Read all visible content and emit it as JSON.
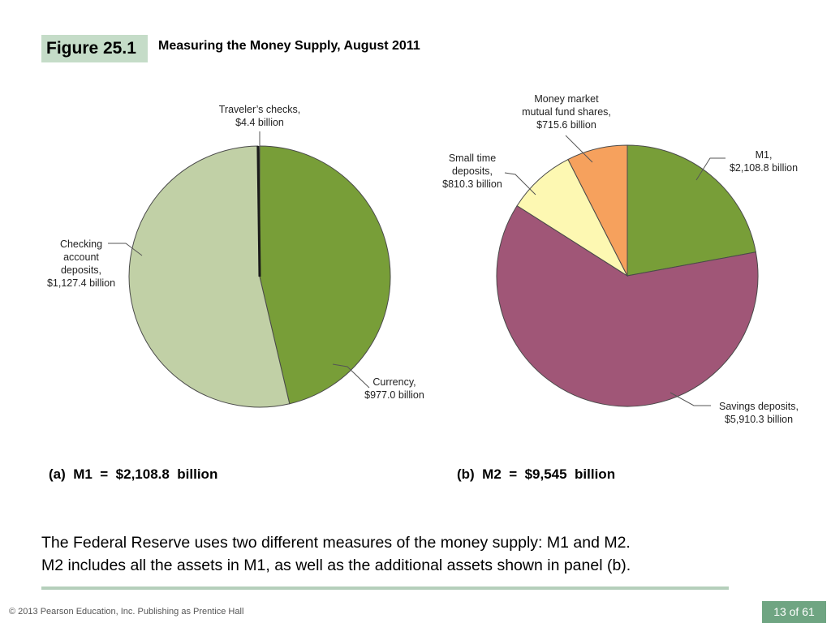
{
  "figure": {
    "label": "Figure 25.1",
    "title": "Measuring the Money Supply, August 2011"
  },
  "chart_data": [
    {
      "type": "pie",
      "subtitle": "(a)  M1  =  $2,108.8  billion",
      "slices": [
        {
          "name": "Currency",
          "value": 977.0,
          "label_lines": [
            "Currency,",
            "$977.0 billion"
          ],
          "color": "#789e38"
        },
        {
          "name": "Checking account deposits",
          "value": 1127.4,
          "label_lines": [
            "Checking",
            "account",
            "deposits,",
            "$1,127.4 billion"
          ],
          "color": "#c1d0a6"
        },
        {
          "name": "Traveler's checks",
          "value": 4.4,
          "label_lines": [
            "Traveler’s checks,",
            "$4.4 billion"
          ],
          "color": "#1a1a1a"
        }
      ]
    },
    {
      "type": "pie",
      "subtitle": "(b)  M2  =  $9,545  billion",
      "slices": [
        {
          "name": "M1",
          "value": 2108.8,
          "label_lines": [
            "M1,",
            "$2,108.8 billion"
          ],
          "color": "#789e38"
        },
        {
          "name": "Savings deposits",
          "value": 5910.3,
          "label_lines": [
            "Savings deposits,",
            "$5,910.3 billion"
          ],
          "color": "#a05677"
        },
        {
          "name": "Small time deposits",
          "value": 810.3,
          "label_lines": [
            "Small time",
            "deposits,",
            "$810.3 billion"
          ],
          "color": "#fdf8b2"
        },
        {
          "name": "Money market mutual fund shares",
          "value": 715.6,
          "label_lines": [
            "Money market",
            "mutual fund shares,",
            "$715.6 billion"
          ],
          "color": "#f6a15d"
        }
      ]
    }
  ],
  "caption": {
    "line1": "The Federal Reserve uses two different measures of the money supply: M1 and M2.",
    "line2": "M2 includes all the assets in M1, as well as the additional assets shown in panel (b)."
  },
  "footer": {
    "copyright": "© 2013 Pearson Education, Inc. Publishing as Prentice Hall",
    "page": "13 of 61"
  }
}
